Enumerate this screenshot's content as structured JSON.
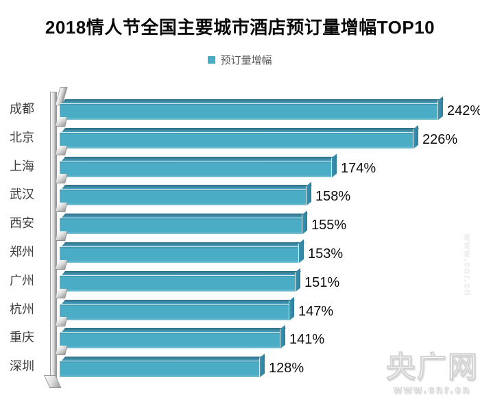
{
  "title": "2018情人节全国主要城市酒店预订量增幅TOP10",
  "legend": {
    "label": "预订量增幅"
  },
  "chart_data": {
    "type": "bar",
    "orientation": "horizontal",
    "title": "2018情人节全国主要城市酒店预订量增幅TOP10",
    "legend_entries": [
      "预订量增幅"
    ],
    "categories": [
      "成都",
      "北京",
      "上海",
      "武汉",
      "西安",
      "郑州",
      "广州",
      "杭州",
      "重庆",
      "深圳"
    ],
    "values": [
      242,
      226,
      174,
      158,
      155,
      153,
      151,
      147,
      141,
      128
    ],
    "value_labels": [
      "242%",
      "226%",
      "174%",
      "158%",
      "155%",
      "153%",
      "151%",
      "147%",
      "141%",
      "128%"
    ],
    "unit": "%",
    "xlim": [
      0,
      260
    ],
    "grid": false,
    "style": "3d-horizontal-bars",
    "bar_color": "#4BACC6",
    "bar_top_color": "#2E6E86",
    "bar_cap_color": "#2E7F9D",
    "bar_highlight_color": "#D6EEF5",
    "axis_wall_color": "#B0B0B0",
    "title_color": "#0A0A0A",
    "category_label_color": "#3D3D3D",
    "value_label_color": "#0D0D0D",
    "legend_text_color": "#595959"
  },
  "watermark": {
    "brand": "央广网",
    "url": "www.cnr.cn"
  }
}
